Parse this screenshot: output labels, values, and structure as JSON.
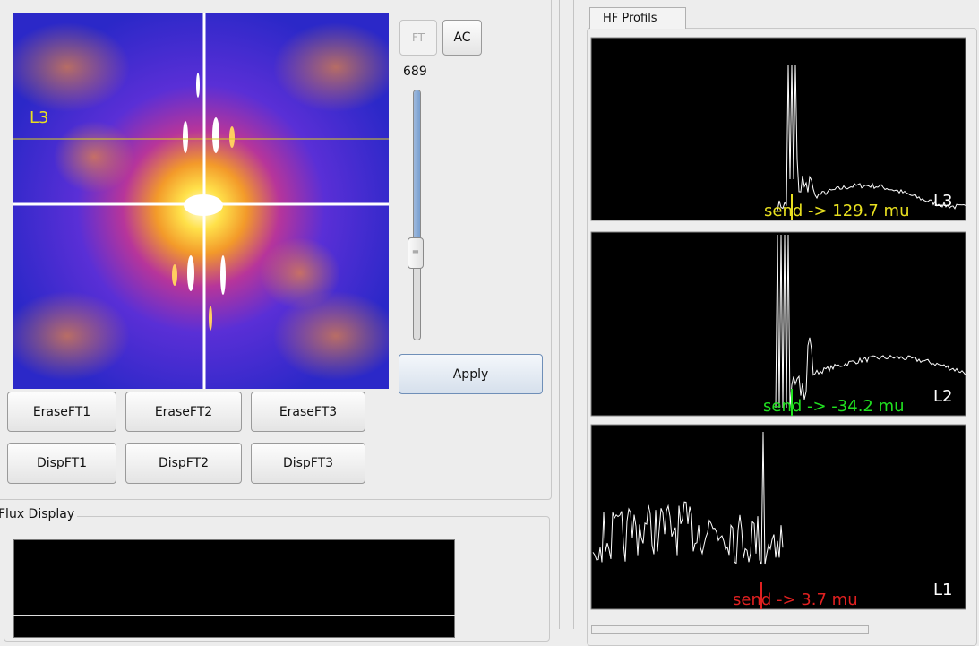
{
  "top_buttons": [
    "FT",
    "AC"
  ],
  "slider_value": 689,
  "apply": "Apply",
  "image_label": "L3",
  "erase_buttons": [
    "EraseFT1",
    "EraseFT2",
    "EraseFT3"
  ],
  "disp_buttons": [
    "DispFT1",
    "DispFT2",
    "DispFT3"
  ],
  "flux_display": {
    "title": "Flux Display"
  },
  "hf_profils": {
    "title": "HF Profils",
    "plots": [
      {
        "readout": "send -> 129.7 mu",
        "label": "L3",
        "color": "#e8e020"
      },
      {
        "readout": "send -> -34.2 mu",
        "label": "L2",
        "color": "#20e020"
      },
      {
        "readout": "send -> 3.7 mu",
        "label": "L1",
        "color": "#e02020"
      }
    ]
  }
}
